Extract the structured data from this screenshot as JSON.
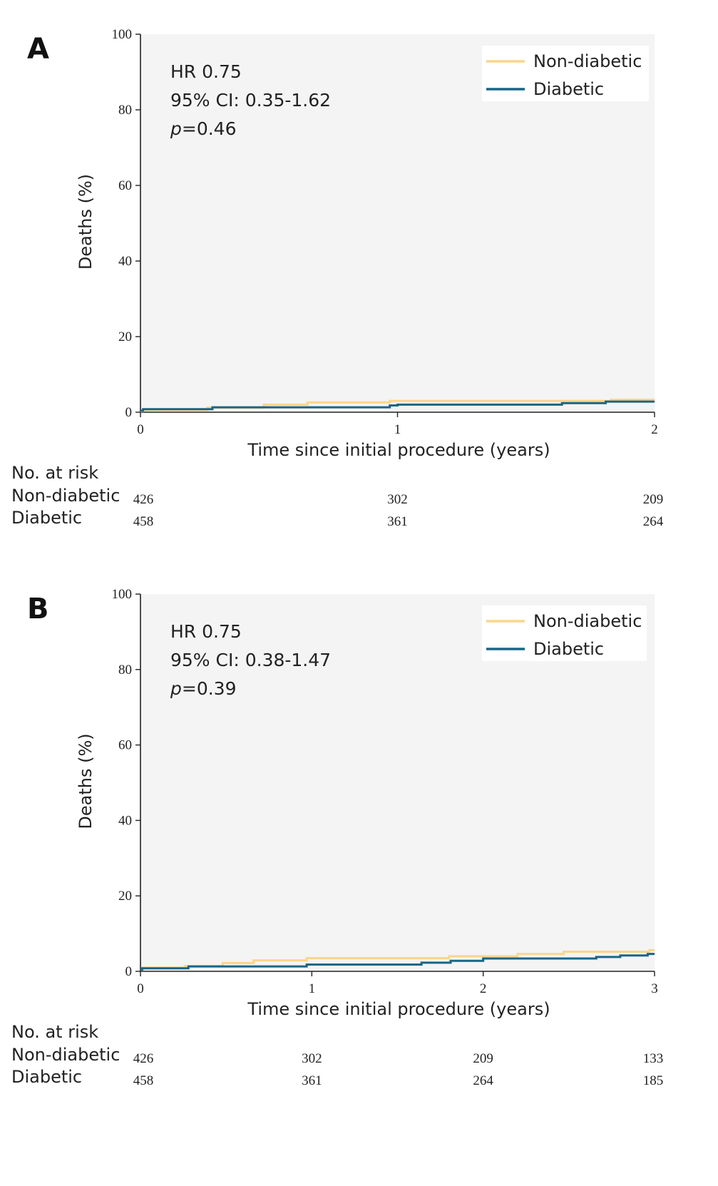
{
  "chart_data": [
    {
      "panel": "A",
      "type": "line",
      "step": true,
      "xlabel": "Time since initial procedure (years)",
      "ylabel": "Deaths (%)",
      "xlim": [
        0,
        2
      ],
      "ylim": [
        0,
        100
      ],
      "xticks": [
        "0",
        "1",
        "2"
      ],
      "yticks": [
        "0",
        "20",
        "40",
        "60",
        "80",
        "100"
      ],
      "background": "#f4f4f4",
      "legend_position": "top-right",
      "stats": {
        "hr": "HR 0.75",
        "ci": "95% CI: 0.35-1.62",
        "p_label": "p",
        "p_value": "=0.46"
      },
      "series": [
        {
          "name": "Non-diabetic",
          "color": "#f9d68c",
          "points": [
            [
              0,
              0.3
            ],
            [
              0.01,
              0.6
            ],
            [
              0.26,
              1.2
            ],
            [
              0.48,
              2.0
            ],
            [
              0.65,
              2.6
            ],
            [
              0.97,
              3.0
            ],
            [
              1.83,
              3.3
            ],
            [
              2.0,
              3.3
            ]
          ]
        },
        {
          "name": "Diabetic",
          "color": "#1a6585",
          "points": [
            [
              0,
              0.4
            ],
            [
              0.01,
              0.8
            ],
            [
              0.28,
              1.3
            ],
            [
              0.97,
              1.8
            ],
            [
              1.0,
              2.0
            ],
            [
              1.64,
              2.4
            ],
            [
              1.81,
              2.8
            ],
            [
              2.0,
              2.8
            ]
          ]
        }
      ],
      "risk_table": {
        "title": "No. at risk",
        "times": [
          0,
          1,
          2
        ],
        "rows": [
          {
            "label": "Non-diabetic",
            "values": [
              "426",
              "302",
              "209"
            ]
          },
          {
            "label": "Diabetic",
            "values": [
              "458",
              "361",
              "264"
            ]
          }
        ]
      }
    },
    {
      "panel": "B",
      "type": "line",
      "step": true,
      "xlabel": "Time since initial procedure (years)",
      "ylabel": "Deaths (%)",
      "xlim": [
        0,
        3
      ],
      "ylim": [
        0,
        100
      ],
      "xticks": [
        "0",
        "1",
        "2",
        "3"
      ],
      "yticks": [
        "0",
        "20",
        "40",
        "60",
        "80",
        "100"
      ],
      "background": "#f4f4f4",
      "legend_position": "top-right",
      "stats": {
        "hr": "HR 0.75",
        "ci": "95% CI: 0.38-1.47",
        "p_label": "p",
        "p_value": "=0.39"
      },
      "series": [
        {
          "name": "Non-diabetic",
          "color": "#f9d68c",
          "points": [
            [
              0,
              0.5
            ],
            [
              0.01,
              1.0
            ],
            [
              0.26,
              1.4
            ],
            [
              0.48,
              2.2
            ],
            [
              0.66,
              2.9
            ],
            [
              0.97,
              3.5
            ],
            [
              1.8,
              4.0
            ],
            [
              2.2,
              4.6
            ],
            [
              2.47,
              5.2
            ],
            [
              2.97,
              5.6
            ],
            [
              3.0,
              5.6
            ]
          ]
        },
        {
          "name": "Diabetic",
          "color": "#1a6585",
          "points": [
            [
              0,
              0.5
            ],
            [
              0.01,
              0.8
            ],
            [
              0.28,
              1.3
            ],
            [
              0.97,
              1.8
            ],
            [
              1.64,
              2.3
            ],
            [
              1.81,
              2.8
            ],
            [
              2.0,
              3.4
            ],
            [
              2.66,
              3.8
            ],
            [
              2.8,
              4.2
            ],
            [
              2.96,
              4.6
            ],
            [
              3.0,
              4.6
            ]
          ]
        }
      ],
      "risk_table": {
        "title": "No. at risk",
        "times": [
          0,
          1,
          2,
          3
        ],
        "rows": [
          {
            "label": "Non-diabetic",
            "values": [
              "426",
              "302",
              "209",
              "133"
            ]
          },
          {
            "label": "Diabetic",
            "values": [
              "458",
              "361",
              "264",
              "185"
            ]
          }
        ]
      }
    }
  ]
}
